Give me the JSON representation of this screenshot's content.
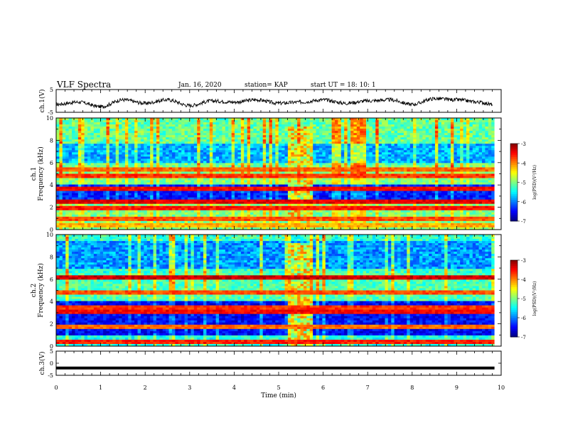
{
  "header": {
    "title": "VLF Spectra",
    "date": "Jan. 16, 2020",
    "station": "station= KAP",
    "start": "start UT =  18: 10: 1"
  },
  "chart_data": [
    {
      "type": "line",
      "panel": "ch1-waveform",
      "ylabel": "ch.1(V)",
      "ylim": [
        -5,
        5
      ],
      "y_ticks": [
        5,
        -5
      ],
      "x_ticks": [
        0,
        1,
        2,
        3,
        4,
        5,
        6,
        7,
        8,
        9,
        10
      ],
      "xlim": [
        0,
        10
      ],
      "x": [
        0,
        0.5,
        1.0,
        1.5,
        2.0,
        2.5,
        3.0,
        3.5,
        4.0,
        4.5,
        5.0,
        5.5,
        6.0,
        6.5,
        7.0,
        7.5,
        8.0,
        8.5,
        9.0,
        9.5,
        9.8
      ],
      "y": [
        -1.5,
        -0.5,
        -2.5,
        0.5,
        -1.0,
        0.5,
        -2.0,
        0.0,
        -0.5,
        0.5,
        -1.0,
        -0.5,
        0.5,
        -1.0,
        0.0,
        0.5,
        -1.5,
        1.0,
        0.5,
        -0.5,
        -1.5
      ],
      "color": "#000000"
    },
    {
      "type": "heatmap",
      "panel": "ch1-spectrogram",
      "ylabel": "ch.1\nFrequency (kHz)",
      "xlim": [
        0,
        10
      ],
      "ylim": [
        0,
        10
      ],
      "y_ticks": [
        0,
        2,
        4,
        6,
        8,
        10
      ],
      "colorbar": {
        "label": "log(PSD)(V²/Hz)",
        "range": [
          -7,
          -3
        ],
        "ticks": [
          -3,
          -4,
          -5,
          -6,
          -7
        ]
      },
      "data_end_min": 9.85,
      "event_window_min": [
        5.2,
        5.8
      ],
      "bands_khz": [
        {
          "f": 0.3,
          "level": -4.2
        },
        {
          "f": 1.0,
          "level": -3.8
        },
        {
          "f": 2.0,
          "level": -3.6
        },
        {
          "f": 2.5,
          "level": -3.4
        },
        {
          "f": 3.6,
          "level": -3.5
        },
        {
          "f": 4.8,
          "level": -3.7
        },
        {
          "f": 5.3,
          "level": -3.9
        }
      ]
    },
    {
      "type": "heatmap",
      "panel": "ch2-spectrogram",
      "ylabel": "ch.2\nFrequency (kHz)",
      "xlim": [
        0,
        10
      ],
      "ylim": [
        0,
        10
      ],
      "y_ticks": [
        0,
        2,
        4,
        6,
        8,
        10
      ],
      "colorbar": {
        "label": "log(PSD)(V²/Hz)",
        "range": [
          -7,
          -3
        ],
        "ticks": [
          -3,
          -4,
          -5,
          -6,
          -7
        ]
      },
      "data_end_min": 9.85,
      "event_window_min": [
        5.2,
        5.8
      ],
      "bands_khz": [
        {
          "f": 0.3,
          "level": -3.6
        },
        {
          "f": 1.8,
          "level": -3.9
        },
        {
          "f": 3.0,
          "level": -3.5
        },
        {
          "f": 3.5,
          "level": -3.7
        },
        {
          "f": 4.8,
          "level": -3.8
        },
        {
          "f": 6.1,
          "level": -3.3
        }
      ]
    },
    {
      "type": "line",
      "panel": "ch3-waveform",
      "ylabel": "ch.3(V)",
      "xlabel": "Time (min)",
      "ylim": [
        -5,
        5
      ],
      "y_ticks": [
        5,
        0,
        -5
      ],
      "x_ticks": [
        0,
        1,
        2,
        3,
        4,
        5,
        6,
        7,
        8,
        9,
        10
      ],
      "xlim": [
        0,
        10
      ],
      "x": [
        0,
        9.85
      ],
      "y": [
        -2.0,
        -2.0
      ],
      "color": "#000000"
    }
  ]
}
